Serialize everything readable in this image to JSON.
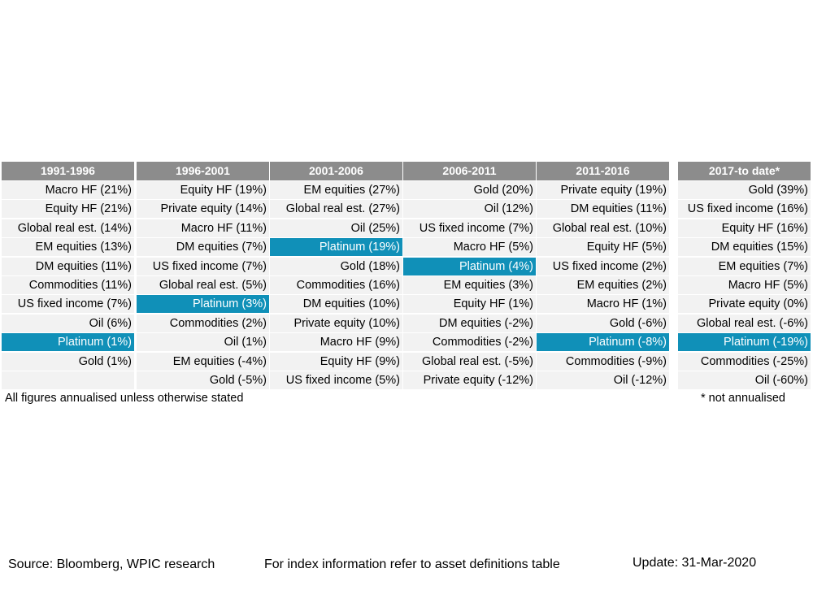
{
  "chart_data": {
    "type": "table",
    "highlight_asset": "Platinum",
    "highlight_color": "#1090b8",
    "header_color": "#8c8c8c",
    "cell_color": "#f2f2f2",
    "columns": [
      {
        "header": "1991-1996",
        "cells": [
          "Macro HF (21%)",
          "Equity HF (21%)",
          "Global real est. (14%)",
          "EM equities (13%)",
          "DM equities (11%)",
          "Commodities (11%)",
          "US fixed income (7%)",
          "Oil (6%)",
          "Platinum (1%)",
          "Gold (1%)",
          ""
        ]
      },
      {
        "header": "1996-2001",
        "cells": [
          "Equity HF (19%)",
          "Private equity (14%)",
          "Macro HF (11%)",
          "DM equities (7%)",
          "US fixed income (7%)",
          "Global real est. (5%)",
          "Platinum (3%)",
          "Commodities (2%)",
          "Oil (1%)",
          "EM equities (-4%)",
          "Gold (-5%)"
        ]
      },
      {
        "header": "2001-2006",
        "cells": [
          "EM equities (27%)",
          "Global real est. (27%)",
          "Oil (25%)",
          "Platinum (19%)",
          "Gold (18%)",
          "Commodities (16%)",
          "DM equities (10%)",
          "Private equity (10%)",
          "Macro HF (9%)",
          "Equity HF (9%)",
          "US fixed income (5%)"
        ]
      },
      {
        "header": "2006-2011",
        "cells": [
          "Gold (20%)",
          "Oil (12%)",
          "US fixed income (7%)",
          "Macro HF (5%)",
          "Platinum (4%)",
          "EM equities (3%)",
          "Equity HF (1%)",
          "DM equities (-2%)",
          "Commodities (-2%)",
          "Global real est. (-5%)",
          "Private equity (-12%)"
        ]
      },
      {
        "header": "2011-2016",
        "cells": [
          "Private equity (19%)",
          "DM equities (11%)",
          "Global real est. (10%)",
          "Equity HF (5%)",
          "US fixed income (2%)",
          "EM equities (2%)",
          "Macro HF (1%)",
          "Gold (-6%)",
          "Platinum (-8%)",
          "Commodities (-9%)",
          "Oil (-12%)"
        ]
      },
      {
        "header": "2017-to date*",
        "cells": [
          "Gold (39%)",
          "US fixed income (16%)",
          "Equity HF (16%)",
          "DM equities (15%)",
          "EM equities (7%)",
          "Macro HF (5%)",
          "Private equity (0%)",
          "Global real est. (-6%)",
          "Platinum (-19%)",
          "Commodities (-25%)",
          "Oil (-60%)"
        ]
      }
    ]
  },
  "notes": {
    "annualised": "All figures annualised unless otherwise stated",
    "not_annualised": "* not annualised"
  },
  "footer": {
    "source": "Source: Bloomberg, WPIC research",
    "index_info": "For index information refer to asset definitions table",
    "update": "Update: 31-Mar-2020"
  }
}
